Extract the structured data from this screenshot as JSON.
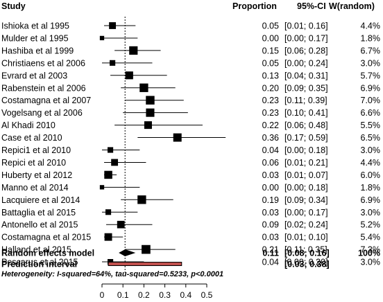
{
  "headers": {
    "study": "Study",
    "proportion": "Proportion",
    "ci": "95%-CI",
    "weight": "W(random)"
  },
  "chart_data": {
    "type": "forest",
    "xlim": [
      0,
      0.5
    ],
    "xticks": [
      "0",
      "0.1",
      "0.2",
      "0.3",
      "0.4",
      "0.5"
    ],
    "reference_line": 0.11,
    "studies": [
      {
        "name": "Ishioka et al 1995",
        "est": 0.05,
        "lo": 0.01,
        "hi": 0.16,
        "prop": "0.05",
        "ci": "[0.01; 0.16]",
        "w": "4.4%",
        "wv": 4.4
      },
      {
        "name": "Mulder et al 1995",
        "est": 0.0,
        "lo": 0.0,
        "hi": 0.17,
        "prop": "0.00",
        "ci": "[0.00; 0.17]",
        "w": "1.8%",
        "wv": 1.8
      },
      {
        "name": "Hashiba et al 1999",
        "est": 0.15,
        "lo": 0.06,
        "hi": 0.28,
        "prop": "0.15",
        "ci": "[0.06; 0.28]",
        "w": "6.7%",
        "wv": 6.7
      },
      {
        "name": "Christiaens et al 2006",
        "est": 0.05,
        "lo": 0.0,
        "hi": 0.24,
        "prop": "0.05",
        "ci": "[0.00; 0.24]",
        "w": "3.0%",
        "wv": 3.0
      },
      {
        "name": "Evrard et al 2003",
        "est": 0.13,
        "lo": 0.04,
        "hi": 0.31,
        "prop": "0.13",
        "ci": "[0.04; 0.31]",
        "w": "5.7%",
        "wv": 5.7
      },
      {
        "name": "Rabenstein et al 2006",
        "est": 0.2,
        "lo": 0.09,
        "hi": 0.35,
        "prop": "0.20",
        "ci": "[0.09; 0.35]",
        "w": "6.9%",
        "wv": 6.9
      },
      {
        "name": "Costamagna et al 2007",
        "est": 0.23,
        "lo": 0.11,
        "hi": 0.39,
        "prop": "0.23",
        "ci": "[0.11; 0.39]",
        "w": "7.0%",
        "wv": 7.0
      },
      {
        "name": "Vogelsang et al 2006",
        "est": 0.23,
        "lo": 0.1,
        "hi": 0.41,
        "prop": "0.23",
        "ci": "[0.10; 0.41]",
        "w": "6.6%",
        "wv": 6.6
      },
      {
        "name": "Al Khadi 2010",
        "est": 0.22,
        "lo": 0.06,
        "hi": 0.48,
        "prop": "0.22",
        "ci": "[0.06; 0.48]",
        "w": "5.5%",
        "wv": 5.5
      },
      {
        "name": "Case et al 2010",
        "est": 0.36,
        "lo": 0.17,
        "hi": 0.59,
        "prop": "0.36",
        "ci": "[0.17; 0.59]",
        "w": "6.5%",
        "wv": 6.5
      },
      {
        "name": "Repici1 et al 2010",
        "est": 0.04,
        "lo": 0.0,
        "hi": 0.18,
        "prop": "0.04",
        "ci": "[0.00; 0.18]",
        "w": "3.0%",
        "wv": 3.0
      },
      {
        "name": "Repici et al 2010",
        "est": 0.06,
        "lo": 0.01,
        "hi": 0.21,
        "prop": "0.06",
        "ci": "[0.01; 0.21]",
        "w": "4.4%",
        "wv": 4.4
      },
      {
        "name": "Huberty et al 2012",
        "est": 0.03,
        "lo": 0.01,
        "hi": 0.07,
        "prop": "0.03",
        "ci": "[0.01; 0.07]",
        "w": "6.0%",
        "wv": 6.0
      },
      {
        "name": "Manno et al 2014",
        "est": 0.0,
        "lo": 0.0,
        "hi": 0.18,
        "prop": "0.00",
        "ci": "[0.00; 0.18]",
        "w": "1.8%",
        "wv": 1.8
      },
      {
        "name": "Lacquiere et al 2014",
        "est": 0.19,
        "lo": 0.09,
        "hi": 0.34,
        "prop": "0.19",
        "ci": "[0.09; 0.34]",
        "w": "6.9%",
        "wv": 6.9
      },
      {
        "name": "Battaglia et al 2015",
        "est": 0.03,
        "lo": 0.0,
        "hi": 0.17,
        "prop": "0.03",
        "ci": "[0.00; 0.17]",
        "w": "3.0%",
        "wv": 3.0
      },
      {
        "name": "Antonello et al 2015",
        "est": 0.09,
        "lo": 0.02,
        "hi": 0.24,
        "prop": "0.09",
        "ci": "[0.02; 0.24]",
        "w": "5.2%",
        "wv": 5.2
      },
      {
        "name": "Costamagna et al 2015",
        "est": 0.03,
        "lo": 0.01,
        "hi": 0.1,
        "prop": "0.03",
        "ci": "[0.01; 0.10]",
        "w": "5.4%",
        "wv": 5.4
      },
      {
        "name": "Halland et al 2015",
        "est": 0.21,
        "lo": 0.11,
        "hi": 0.35,
        "prop": "0.21",
        "ci": "[0.11; 0.35]",
        "w": "7.3%",
        "wv": 7.3
      },
      {
        "name": "Pescarus et al 2015",
        "est": 0.04,
        "lo": 0.0,
        "hi": 0.2,
        "prop": "0.04",
        "ci": "[0.00; 0.20]",
        "w": "3.0%",
        "wv": 3.0
      }
    ],
    "summary": {
      "name": "Random effects model",
      "est": 0.11,
      "lo": 0.08,
      "hi": 0.16,
      "prop": "0.11",
      "ci": "[0.08; 0.16]",
      "w": "100%"
    },
    "prediction": {
      "name": "Prediction interval",
      "lo": 0.03,
      "hi": 0.38,
      "ci": "[0.03; 0.38]"
    },
    "heterogeneity": "Heterogeneity: I-squared=64%, tau-squared=0.5233, p<0.0001",
    "colors": {
      "square": "#000000",
      "prediction_fill": "#c0504d",
      "line": "#000000"
    }
  }
}
